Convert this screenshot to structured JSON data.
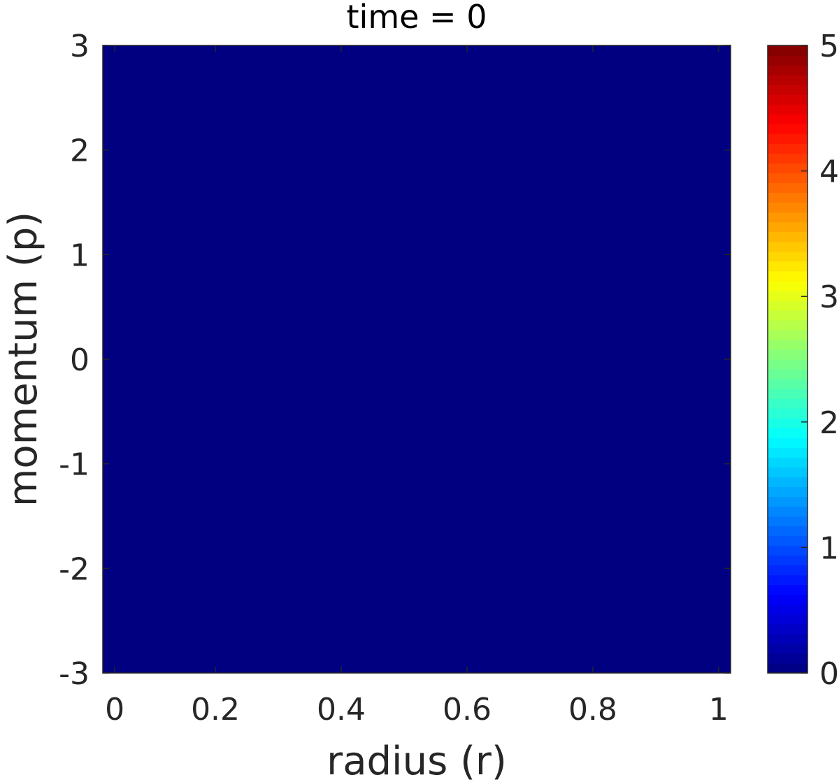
{
  "chart_data": {
    "type": "heatmap",
    "title": "time = 0",
    "xlabel": "radius (r)",
    "ylabel": "momentum (p)",
    "xlim": [
      0.021,
      1.019
    ],
    "ylim": [
      -3,
      3
    ],
    "xticks": [
      {
        "value": 0.04,
        "label": "0"
      },
      {
        "value": 0.2,
        "label": "0.2"
      },
      {
        "value": 0.4,
        "label": "0.4"
      },
      {
        "value": 0.6,
        "label": "0.6"
      },
      {
        "value": 0.8,
        "label": "0.8"
      },
      {
        "value": 1.0,
        "label": "1"
      }
    ],
    "yticks": [
      {
        "value": 3,
        "label": "3"
      },
      {
        "value": 2,
        "label": "2"
      },
      {
        "value": 1,
        "label": "1"
      },
      {
        "value": 0,
        "label": "0"
      },
      {
        "value": -1,
        "label": "-1"
      },
      {
        "value": -2,
        "label": "-2"
      },
      {
        "value": -3,
        "label": "-3"
      }
    ],
    "values": [
      [
        0
      ]
    ],
    "colormap": "jet",
    "colorbar": {
      "location": "right",
      "clim": [
        0,
        5
      ],
      "ticks": [
        {
          "value": 0,
          "label": "0"
        },
        {
          "value": 1,
          "label": "1"
        },
        {
          "value": 2,
          "label": "2"
        },
        {
          "value": 3,
          "label": "3"
        },
        {
          "value": 4,
          "label": "4"
        },
        {
          "value": 5,
          "label": "5"
        }
      ]
    },
    "grid": false
  }
}
